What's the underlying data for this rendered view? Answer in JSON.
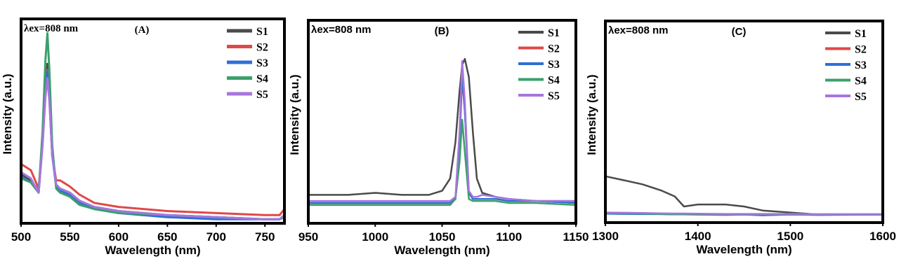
{
  "colors": {
    "S1": "#4a4a4a",
    "S2": "#e04848",
    "S3": "#2f6fd6",
    "S4": "#3aa06a",
    "S5": "#a676de"
  },
  "chart_data": [
    {
      "type": "line",
      "panel_label": "(A)",
      "annotation": "λex=808 nm",
      "xlabel": "Wavelength (nm)",
      "ylabel": "Intensity (a.u.)",
      "xlim": [
        500,
        770
      ],
      "ylim": [
        0,
        100
      ],
      "xticks": [
        500,
        550,
        600,
        650,
        700,
        750
      ],
      "legend": "top-right",
      "x": [
        500,
        510,
        518,
        522,
        525,
        527,
        529,
        532,
        536,
        540,
        550,
        560,
        575,
        600,
        650,
        700,
        750,
        765,
        770
      ],
      "series": [
        {
          "name": "S1",
          "values": [
            24,
            21,
            15,
            40,
            65,
            78,
            65,
            35,
            18,
            17,
            15,
            11,
            8,
            6,
            4,
            3,
            2,
            2,
            4
          ]
        },
        {
          "name": "S2",
          "values": [
            29,
            26,
            17,
            40,
            65,
            75,
            62,
            33,
            21,
            21,
            18,
            14,
            10,
            8,
            6,
            5,
            4,
            4,
            7
          ]
        },
        {
          "name": "S3",
          "values": [
            23,
            20,
            15,
            40,
            65,
            74,
            62,
            33,
            18,
            16,
            14,
            10,
            7,
            5,
            3,
            2,
            2,
            2,
            3
          ]
        },
        {
          "name": "S4",
          "values": [
            22,
            20,
            15,
            45,
            80,
            93,
            75,
            38,
            17,
            15,
            13,
            9,
            7,
            5,
            4,
            3,
            2,
            2,
            3
          ]
        },
        {
          "name": "S5",
          "values": [
            25,
            22,
            15,
            38,
            62,
            71,
            60,
            33,
            19,
            17,
            15,
            11,
            8,
            6,
            4,
            3,
            2,
            2,
            4
          ]
        }
      ]
    },
    {
      "type": "line",
      "panel_label": "(B)",
      "annotation": "λex=808 nm",
      "xlabel": "Wavelength (nm)",
      "ylabel": "Intensity (a.u.)",
      "xlim": [
        950,
        1150
      ],
      "ylim": [
        0,
        100
      ],
      "xticks": [
        950,
        1000,
        1050,
        1100,
        1150
      ],
      "legend": "top-right",
      "x": [
        950,
        980,
        1000,
        1020,
        1040,
        1050,
        1056,
        1060,
        1063,
        1065,
        1067,
        1070,
        1073,
        1076,
        1080,
        1090,
        1100,
        1120,
        1150
      ],
      "series": [
        {
          "name": "S1",
          "values": [
            14,
            14,
            15,
            14,
            14,
            16,
            22,
            40,
            65,
            78,
            81,
            72,
            45,
            22,
            15,
            13,
            12,
            11,
            11
          ]
        },
        {
          "name": "S2",
          "values": [
            10,
            10,
            10,
            10,
            10,
            10,
            10,
            12,
            40,
            72,
            55,
            15,
            12,
            12,
            12,
            12,
            11,
            11,
            10
          ]
        },
        {
          "name": "S3",
          "values": [
            10,
            10,
            10,
            10,
            10,
            10,
            10,
            12,
            40,
            74,
            55,
            15,
            12,
            12,
            12,
            12,
            11,
            11,
            10
          ]
        },
        {
          "name": "S4",
          "values": [
            9,
            9,
            9,
            9,
            9,
            9,
            9,
            12,
            30,
            51,
            35,
            12,
            11,
            11,
            11,
            11,
            10,
            10,
            9
          ]
        },
        {
          "name": "S5",
          "values": [
            11,
            11,
            11,
            11,
            11,
            11,
            11,
            13,
            45,
            80,
            60,
            16,
            13,
            13,
            14,
            13,
            12,
            11,
            11
          ]
        }
      ]
    },
    {
      "type": "line",
      "panel_label": "(C)",
      "annotation": "λex=808 nm",
      "xlabel": "Wavelength (nm)",
      "ylabel": "Intensity (a.u.)",
      "xlim": [
        1300,
        1600
      ],
      "ylim": [
        0,
        100
      ],
      "xticks": [
        1300,
        1400,
        1500,
        1600
      ],
      "legend": "top-right",
      "x": [
        1300,
        1320,
        1340,
        1360,
        1375,
        1385,
        1400,
        1430,
        1450,
        1470,
        1500,
        1530,
        1600
      ],
      "series": [
        {
          "name": "S1",
          "values": [
            23,
            21,
            19,
            16,
            13,
            8,
            9,
            9,
            8,
            6,
            5,
            4,
            4
          ]
        },
        {
          "name": "S2",
          "values": [
            4.6,
            4.5,
            4.3,
            4.2,
            4.1,
            4.1,
            4,
            3.8,
            4,
            4,
            4,
            4,
            4
          ]
        },
        {
          "name": "S3",
          "values": [
            4.4,
            4.3,
            4.2,
            4.2,
            4.1,
            4.1,
            4,
            4,
            4,
            3.6,
            4,
            3.8,
            4
          ]
        },
        {
          "name": "S4",
          "values": [
            4.7,
            4.6,
            4.4,
            4.3,
            4.2,
            4.2,
            4.1,
            4,
            4,
            4,
            4,
            3.9,
            4
          ]
        },
        {
          "name": "S5",
          "values": [
            5,
            4.9,
            4.8,
            4.6,
            4.5,
            4.5,
            4.4,
            4.3,
            4.3,
            4.3,
            4.3,
            4.2,
            4.2
          ]
        }
      ]
    }
  ]
}
